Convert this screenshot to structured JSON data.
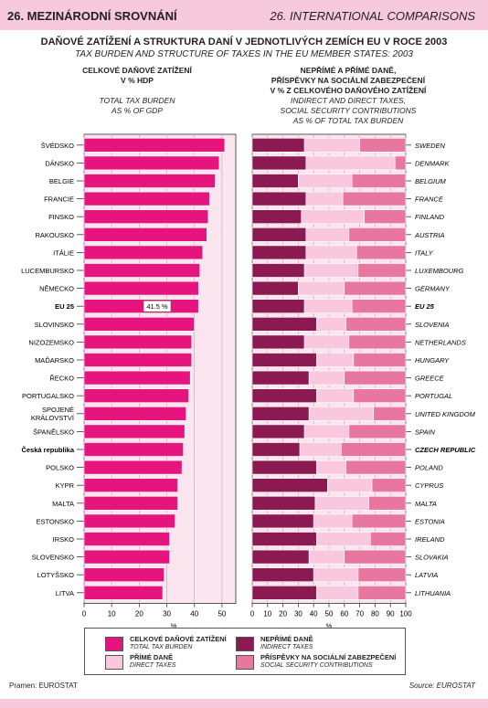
{
  "header": {
    "left": "26. MEZINÁRODNÍ SROVNÁNÍ",
    "right": "26. INTERNATIONAL COMPARISONS"
  },
  "title": "DAŇOVÉ ZATÍŽENÍ A STRUKTURA DANÍ V JEDNOTLIVÝCH ZEMÍCH EU V ROCE 2003",
  "subtitle": "TAX BURDEN AND STRUCTURE OF TAXES IN THE EU MEMBER STATES: 2003",
  "left_heading": {
    "cz_1": "CELKOVÉ DAŇOVÉ ZATÍŽENÍ",
    "cz_2": "V % HDP",
    "en_1": "TOTAL TAX BURDEN",
    "en_2": "AS % OF GDP"
  },
  "right_heading": {
    "cz_1": "NEPŘÍMÉ A PŘÍMÉ DANĚ,",
    "cz_2": "PŘÍSPĚVKY NA SOCIÁLNÍ ZABEZPEČENÍ",
    "cz_3": "V % Z CELKOVÉHO DAŇOVÉHO ZATÍŽENÍ",
    "en_1": "INDIRECT AND DIRECT TAXES,",
    "en_2": "SOCIAL SECURITY CONTRIBUTIONS",
    "en_3": "AS % OF TOTAL TAX BURDEN"
  },
  "colors": {
    "total": "#e6157e",
    "indirect": "#8c1a52",
    "direct": "#f9c8de",
    "social": "#e8779f",
    "left_bg": "#fbe6ef",
    "right_bg": "#fbe6ef"
  },
  "legend": {
    "total_cz": "CELKOVÉ DAŇOVÉ ZATÍŽENÍ",
    "total_en": "TOTAL TAX BURDEN",
    "direct_cz": "PŘÍMÉ DANĚ",
    "direct_en": "DIRECT TAXES",
    "indirect_cz": "NEPŘÍMÉ DANĚ",
    "indirect_en": "INDIRECT TAXES",
    "social_cz": "PŘÍSPĚVKY NA SOCIÁLNÍ ZABEZPEČENÍ",
    "social_en": "SOCIAL SECURITY CONTRIBUTIONS"
  },
  "footer": {
    "source_cz": "Pramen: EUROSTAT",
    "source_en": "Source: EUROSTAT"
  },
  "chart_data": [
    {
      "type": "bar",
      "orientation": "horizontal",
      "categories": [
        "ŠVÉDSKO",
        "DÁNSKO",
        "BELGIE",
        "FRANCIE",
        "FINSKO",
        "RAKOUSKO",
        "ITÁLIE",
        "LUCEMBURSKO",
        "NĚMECKO",
        "EU 25",
        "SLOVINSKO",
        "NIZOZEMSKO",
        "MAĎARSKO",
        "ŘECKO",
        "PORTUGALSKO",
        "SPOJENÉ KRÁLOVSTVÍ",
        "ŠPANĚLSKO",
        "Česká republika",
        "POLSKO",
        "KYPR",
        "MALTA",
        "ESTONSKO",
        "IRSKO",
        "SLOVENSKO",
        "LOTYŠSKO",
        "LITVA"
      ],
      "bold_categories": [
        "EU 25",
        "Česká republika"
      ],
      "values": [
        51,
        49,
        47.5,
        45.5,
        45,
        44.5,
        43,
        42,
        41.5,
        41.5,
        40,
        39,
        39,
        38.5,
        38,
        37,
        36.5,
        36,
        35.5,
        34,
        34,
        33,
        31,
        31,
        29,
        28.5
      ],
      "annotation": "41.5 %",
      "annotation_category": "EU 25",
      "xlim": [
        0,
        55
      ],
      "xticks": [
        0,
        10,
        20,
        30,
        40,
        50
      ],
      "xlabel": "%"
    },
    {
      "type": "bar",
      "stacked": true,
      "orientation": "horizontal",
      "categories": [
        "SWEDEN",
        "DENMARK",
        "BELGIUM",
        "FRANCE",
        "FINLAND",
        "AUSTRIA",
        "ITALY",
        "LUXEMBOURG",
        "GERMANY",
        "EU 25",
        "SLOVENIA",
        "NETHERLANDS",
        "HUNGARY",
        "GREECE",
        "PORTUGAL",
        "UNITED KINGDOM",
        "SPAIN",
        "CZECH REPUBLIC",
        "POLAND",
        "CYPRUS",
        "MALTA",
        "ESTONIA",
        "IRELAND",
        "SLOVAKIA",
        "LATVIA",
        "LITHUANIA"
      ],
      "bold_categories": [
        "EU 25",
        "CZECH REPUBLIC"
      ],
      "series": [
        {
          "name": "indirect",
          "values": [
            34,
            35,
            30,
            35,
            32,
            35,
            35,
            34,
            30,
            34,
            42,
            34,
            42,
            37,
            42,
            37,
            34,
            31,
            42,
            49,
            41,
            40,
            42,
            37,
            40,
            42
          ]
        },
        {
          "name": "direct",
          "values": [
            36,
            58,
            35,
            24,
            41,
            28,
            33,
            35,
            30,
            31,
            19,
            29,
            24,
            23,
            24,
            42,
            29,
            27,
            19,
            29,
            35,
            25,
            35,
            23,
            29,
            27
          ]
        },
        {
          "name": "social",
          "values": [
            30,
            7,
            35,
            41,
            27,
            37,
            32,
            31,
            40,
            35,
            39,
            37,
            34,
            40,
            34,
            21,
            37,
            42,
            39,
            22,
            24,
            35,
            23,
            40,
            31,
            31
          ]
        }
      ],
      "xlim": [
        0,
        100
      ],
      "xticks": [
        0,
        10,
        20,
        30,
        40,
        50,
        60,
        70,
        80,
        90,
        100
      ],
      "xlabel": "%"
    }
  ]
}
